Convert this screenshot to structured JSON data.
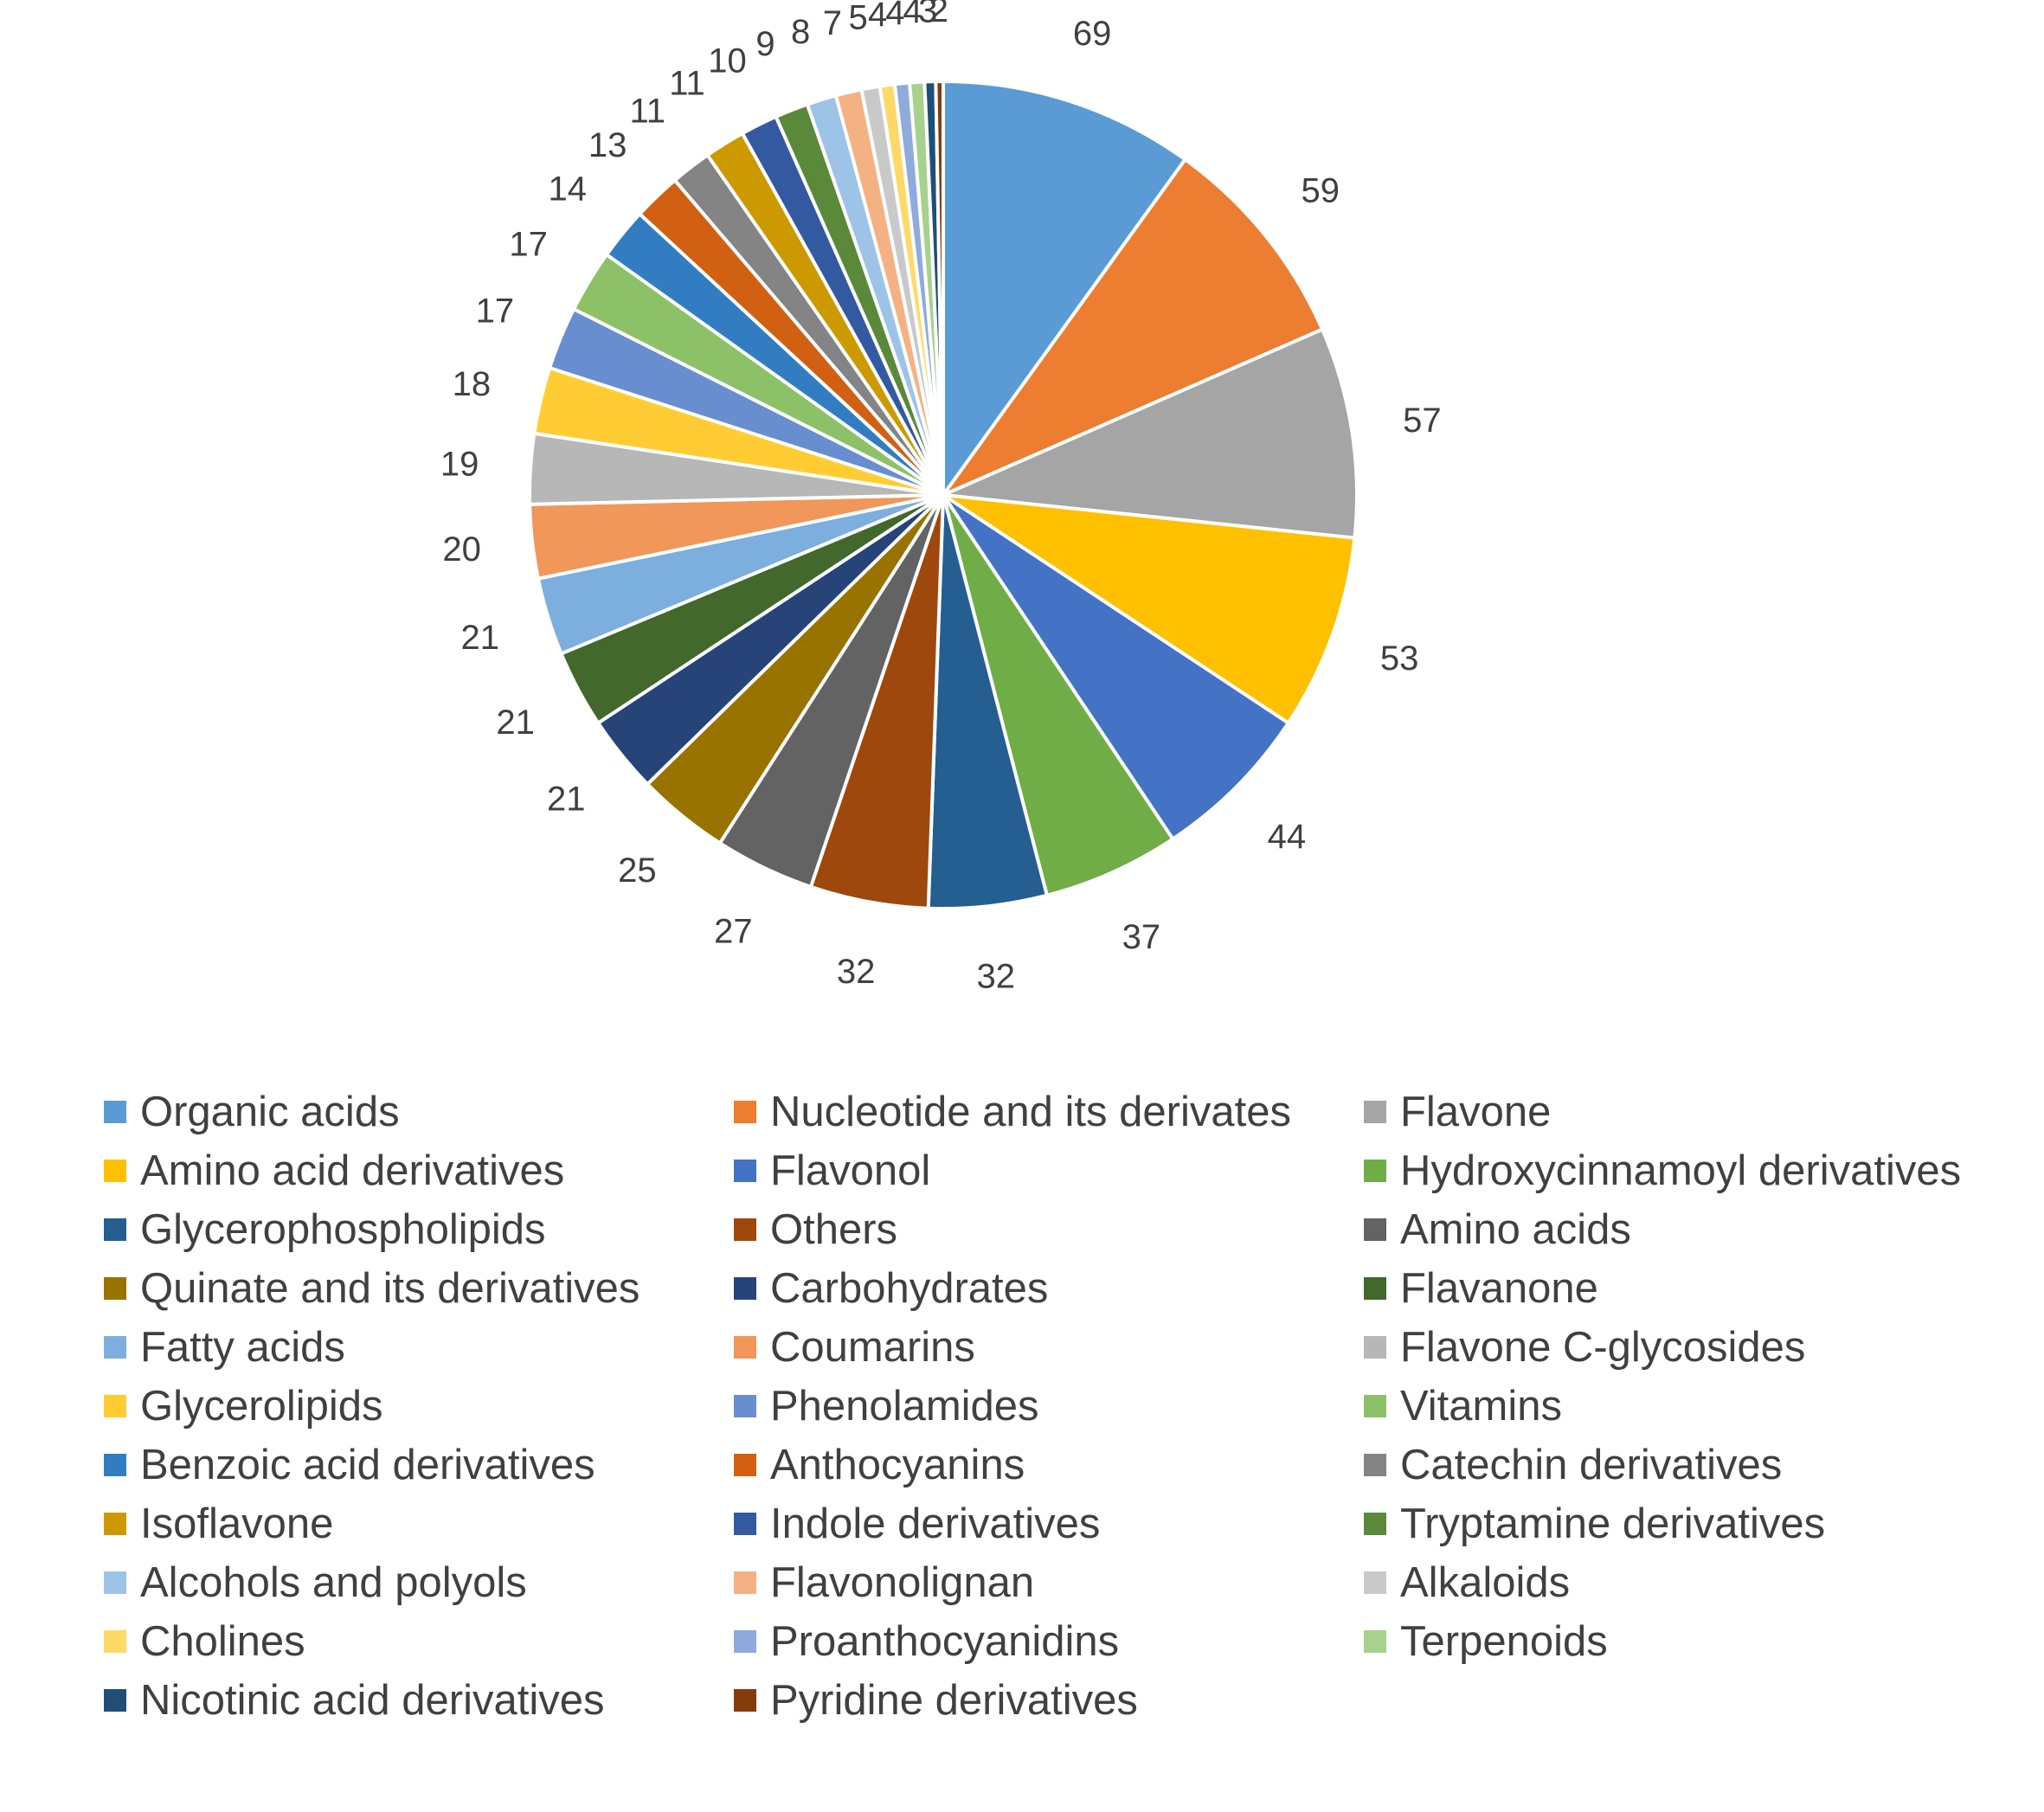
{
  "chart_data": {
    "type": "pie",
    "title": "",
    "legend_position": "bottom",
    "start_angle": "12 o'clock, clockwise",
    "slices": [
      {
        "label": "Organic acids",
        "value": 69,
        "value_label": "69",
        "color": "#5B9BD5"
      },
      {
        "label": "Nucleotide and its derivates",
        "value": 59,
        "value_label": "59",
        "color": "#ED7D31"
      },
      {
        "label": "Flavone",
        "value": 57,
        "value_label": "57",
        "color": "#A5A5A5"
      },
      {
        "label": "Amino acid derivatives",
        "value": 53,
        "value_label": "53",
        "color": "#FFC000"
      },
      {
        "label": "Flavonol",
        "value": 44,
        "value_label": "44",
        "color": "#4472C4"
      },
      {
        "label": "Hydroxycinnamoyl derivatives",
        "value": 37,
        "value_label": "37",
        "color": "#70AD47"
      },
      {
        "label": "Glycerophospholipids",
        "value": 32,
        "value_label": "32",
        "color": "#255E91"
      },
      {
        "label": "Others",
        "value": 32,
        "value_label": "32",
        "color": "#9E480E"
      },
      {
        "label": "Amino acids",
        "value": 27,
        "value_label": "27",
        "color": "#636363"
      },
      {
        "label": "Quinate and its derivatives",
        "value": 25,
        "value_label": "25",
        "color": "#997300"
      },
      {
        "label": "Carbohydrates",
        "value": 21,
        "value_label": "21",
        "color": "#264478"
      },
      {
        "label": "Flavanone",
        "value": 21,
        "value_label": "21",
        "color": "#43682B"
      },
      {
        "label": "Fatty acids",
        "value": 21,
        "value_label": "21",
        "color": "#7CAFDD"
      },
      {
        "label": "Coumarins",
        "value": 20,
        "value_label": "20",
        "color": "#F1975A"
      },
      {
        "label": "Flavone C-glycosides",
        "value": 19,
        "value_label": "19",
        "color": "#B7B7B7"
      },
      {
        "label": "Glycerolipids",
        "value": 18,
        "value_label": "18",
        "color": "#FFCD33"
      },
      {
        "label": "Phenolamides",
        "value": 17,
        "value_label": "17",
        "color": "#698ED0"
      },
      {
        "label": "Vitamins",
        "value": 17,
        "value_label": "17",
        "color": "#8CC168"
      },
      {
        "label": "Benzoic acid derivatives",
        "value": 14,
        "value_label": "14",
        "color": "#327DC2"
      },
      {
        "label": "Anthocyanins",
        "value": 13,
        "value_label": "13",
        "color": "#D26012"
      },
      {
        "label": "Catechin derivatives",
        "value": 11,
        "value_label": "11",
        "color": "#848484"
      },
      {
        "label": "Isoflavone",
        "value": 11,
        "value_label": "11",
        "color": "#CC9A00"
      },
      {
        "label": "Indole derivatives",
        "value": 10,
        "value_label": "10",
        "color": "#335AA1"
      },
      {
        "label": "Tryptamine derivatives",
        "value": 9,
        "value_label": "9",
        "color": "#5A8A39"
      },
      {
        "label": "Alcohols and polyols",
        "value": 8,
        "value_label": "8",
        "color": "#9DC3E6"
      },
      {
        "label": "Flavonolignan",
        "value": 7,
        "value_label": "7",
        "color": "#F4B183"
      },
      {
        "label": "Alkaloids",
        "value": 5,
        "value_label": "5",
        "color": "#C9C9C9"
      },
      {
        "label": "Cholines",
        "value": 4,
        "value_label": "4",
        "color": "#FFD966"
      },
      {
        "label": "Proanthocyanidins",
        "value": 4,
        "value_label": "4",
        "color": "#8FAADC"
      },
      {
        "label": "Terpenoids",
        "value": 4,
        "value_label": "4",
        "color": "#A9D18E"
      },
      {
        "label": "Nicotinic acid derivatives",
        "value": 3,
        "value_label": "3",
        "color": "#1F4E79"
      },
      {
        "label": "Pyridine derivatives",
        "value": 2,
        "value_label": "2",
        "color": "#843C0C"
      }
    ]
  }
}
